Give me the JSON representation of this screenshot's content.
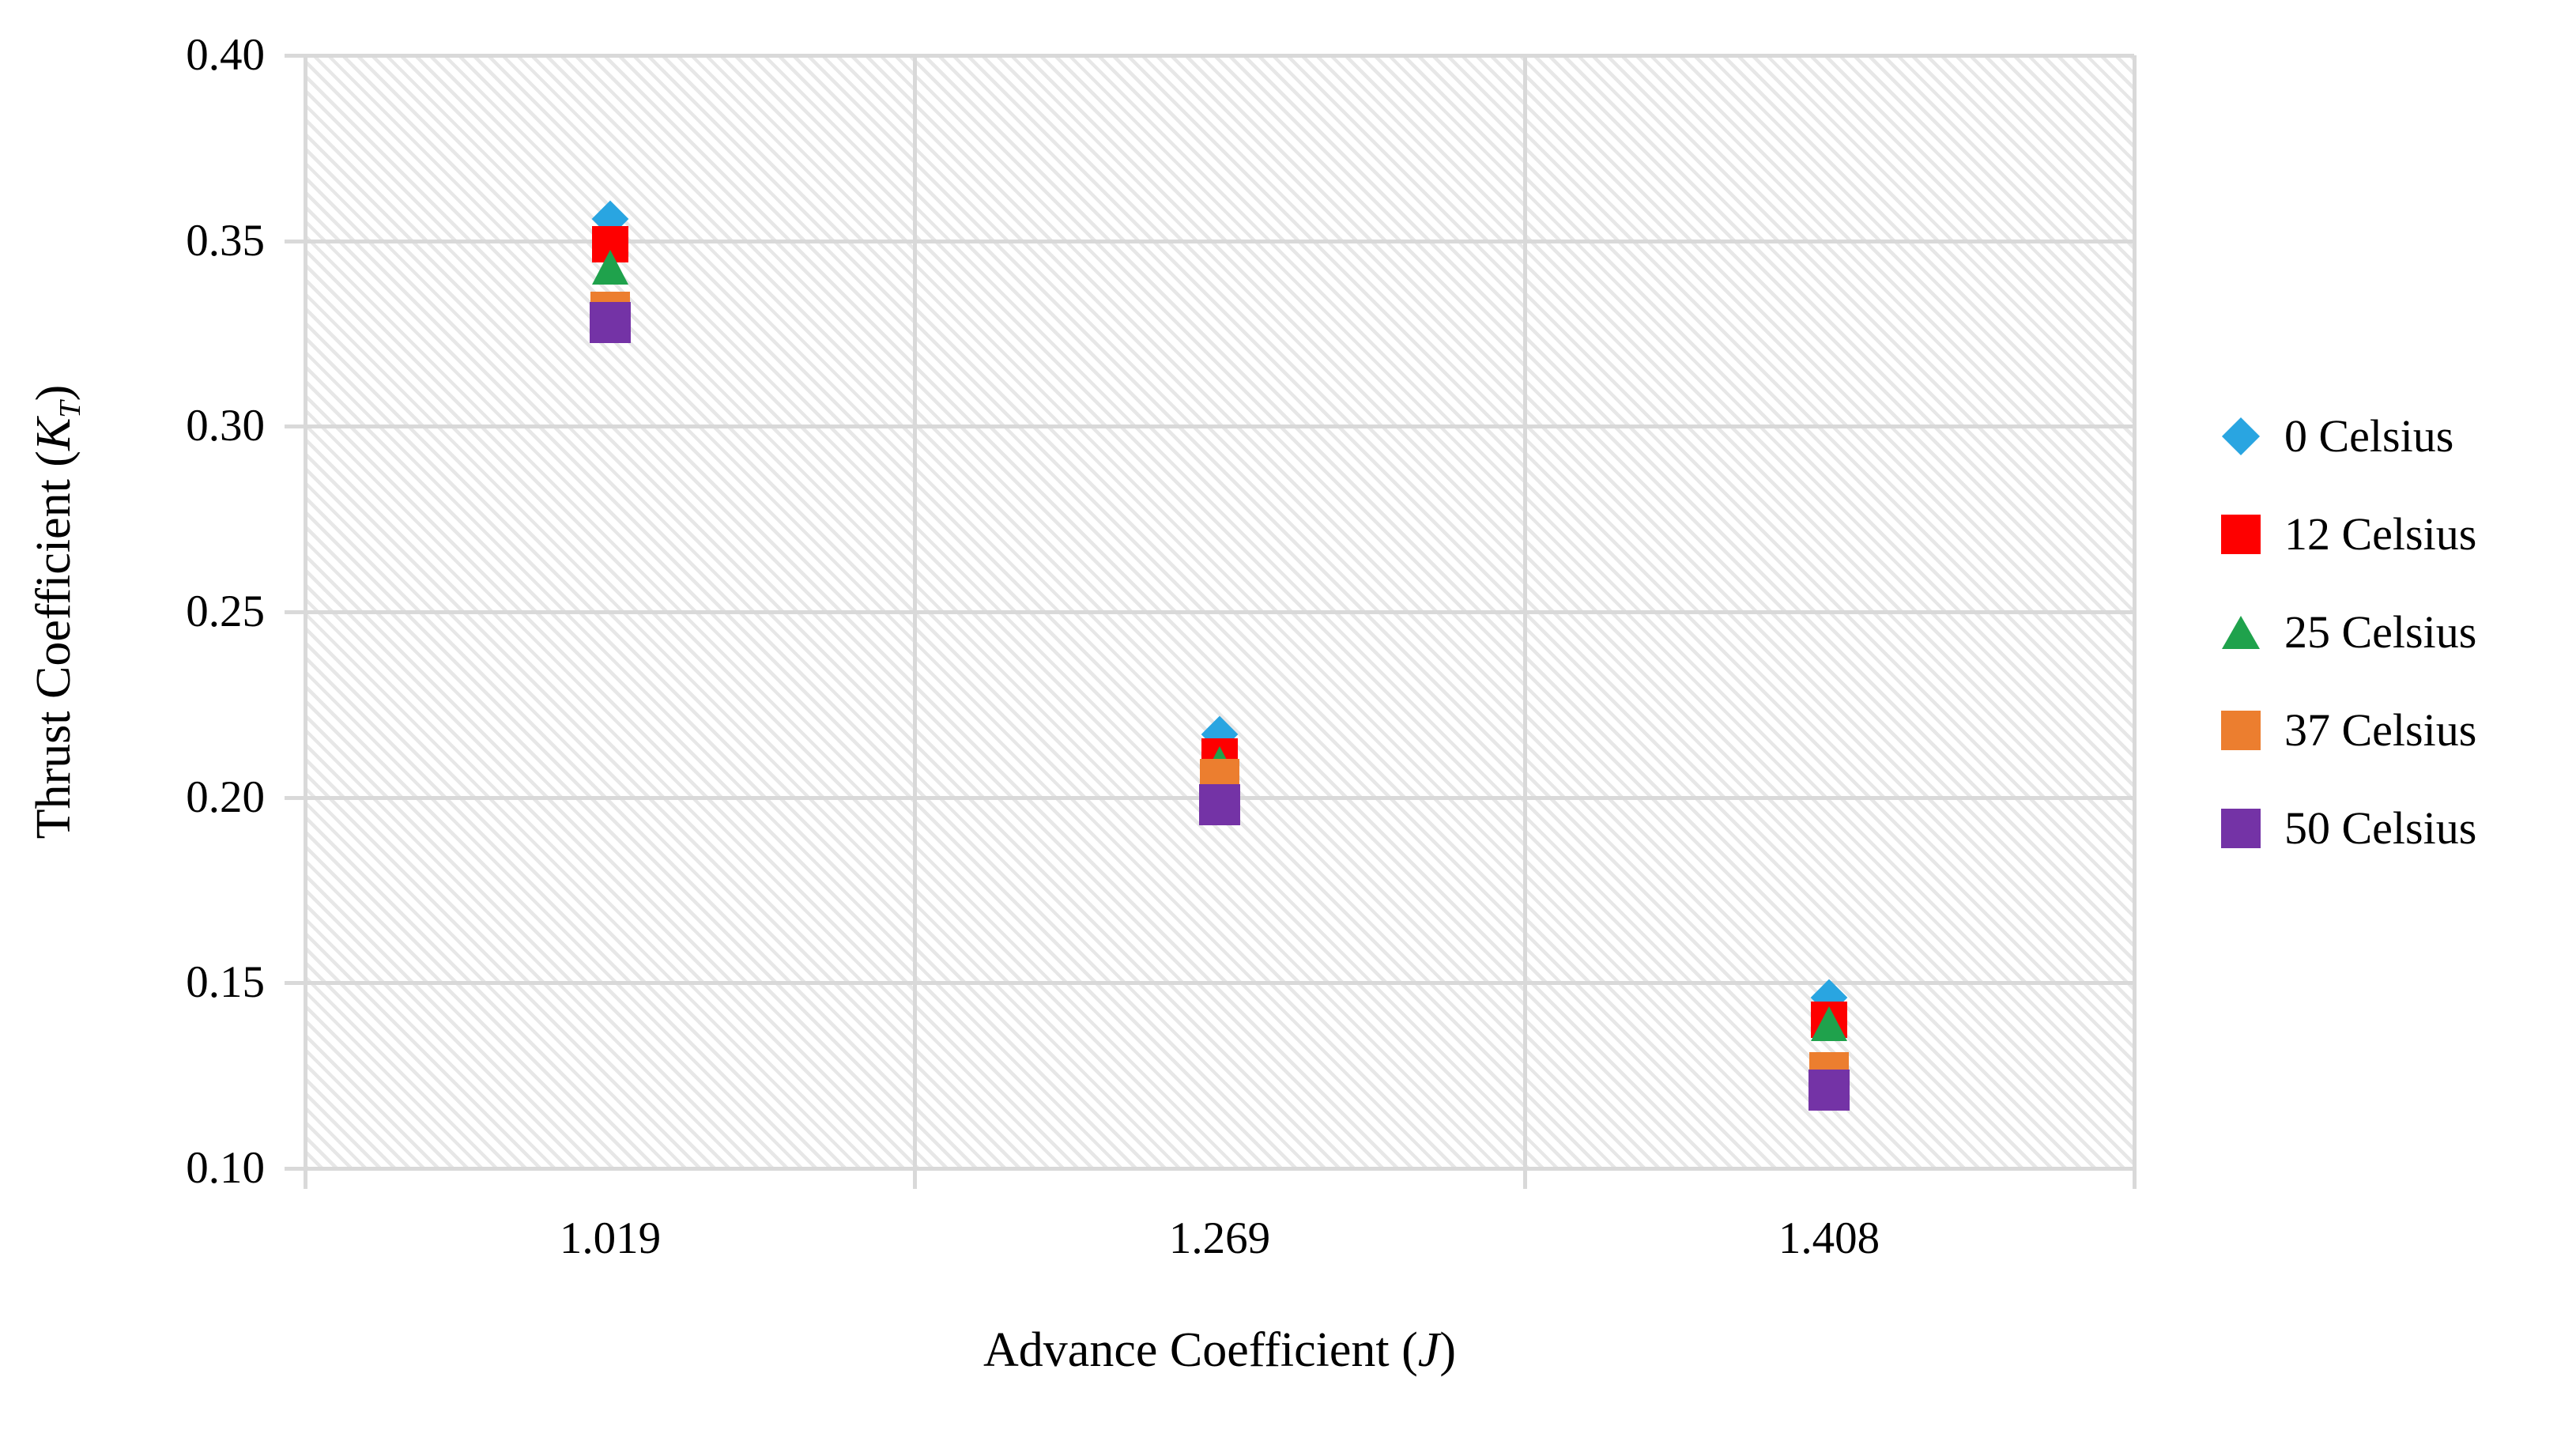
{
  "chart_data": {
    "type": "scatter",
    "title": "",
    "xlabel": "Advance Coefficient (J)",
    "ylabel": "Thrust Coefficient (KT)",
    "categories": [
      "1.019",
      "1.269",
      "1.408"
    ],
    "x_numeric": [
      1.019,
      1.269,
      1.408
    ],
    "y_ticks": [
      "0.40",
      "0.35",
      "0.30",
      "0.25",
      "0.20",
      "0.15",
      "0.10"
    ],
    "ylim": [
      0.1,
      0.4
    ],
    "grid": true,
    "legend_position": "right",
    "plot_background": "light-diagonal-hatch",
    "series": [
      {
        "name": "0 Celsius",
        "marker": "diamond",
        "color": "#29A5E1",
        "values": [
          0.356,
          0.217,
          0.146
        ]
      },
      {
        "name": "12 Celsius",
        "marker": "square",
        "color": "#FE0000",
        "values": [
          0.349,
          0.211,
          0.14
        ]
      },
      {
        "name": "25 Celsius",
        "marker": "triangle",
        "color": "#1FA24C",
        "values": [
          0.343,
          0.209,
          0.139
        ]
      },
      {
        "name": "37 Celsius",
        "marker": "square",
        "color": "#EC7E2F",
        "values": [
          0.331,
          0.205,
          0.126
        ]
      },
      {
        "name": "50 Celsius",
        "marker": "square",
        "color": "#7433A6",
        "values": [
          0.328,
          0.198,
          0.121
        ]
      }
    ],
    "style": {
      "gridline_color": "#D9D9D9",
      "hatch_color": "#E7E7E7",
      "text_color": "#000000",
      "background_color": "#FFFFFF"
    }
  },
  "axis_titles": {
    "y_prefix": "Thrust Coefficient (",
    "y_symbol": "K",
    "y_subscript": "T",
    "y_suffix": ")",
    "x_prefix": "Advance Coefficient (",
    "x_symbol": "J",
    "x_suffix": ")"
  }
}
